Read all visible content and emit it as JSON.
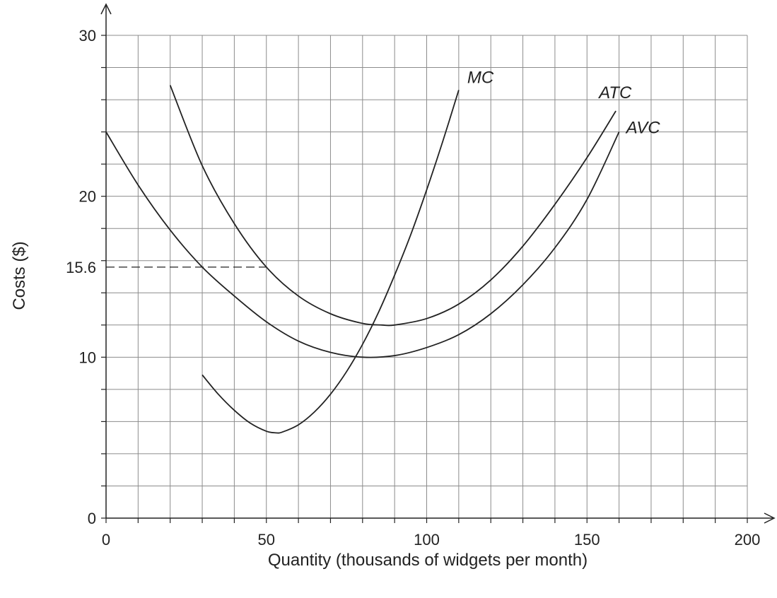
{
  "chart_data": {
    "type": "line",
    "title": "",
    "xlabel": "Quantity (thousands of widgets per month)",
    "ylabel": "Costs ($)",
    "xlim": [
      0,
      200
    ],
    "ylim": [
      0,
      30
    ],
    "x_ticks": [
      0,
      50,
      100,
      150,
      200
    ],
    "y_ticks": [
      0,
      10,
      20,
      30
    ],
    "y_extra_ticks": [
      15.6
    ],
    "x_tick_labels": [
      "0",
      "50",
      "100",
      "150",
      "200"
    ],
    "y_tick_labels": [
      "0",
      "10",
      "20",
      "30"
    ],
    "y_extra_tick_labels": [
      "15.6"
    ],
    "grid": true,
    "x_grid_step": 10,
    "y_grid_step": 2,
    "series": [
      {
        "name": "MC",
        "x": [
          30,
          35,
          40,
          45,
          50,
          53,
          55,
          60,
          65,
          70,
          75,
          80,
          85,
          90,
          95,
          100,
          105,
          110
        ],
        "y": [
          8.9,
          7.7,
          6.7,
          5.9,
          5.4,
          5.3,
          5.35,
          5.8,
          6.6,
          7.7,
          9.1,
          10.8,
          12.8,
          15.1,
          17.6,
          20.4,
          23.4,
          26.6
        ]
      },
      {
        "name": "ATC",
        "x": [
          20,
          30,
          40,
          50,
          60,
          70,
          80,
          86,
          90,
          100,
          110,
          120,
          130,
          140,
          150,
          159
        ],
        "y": [
          26.9,
          21.9,
          18.3,
          15.6,
          13.8,
          12.7,
          12.1,
          12.0,
          12.0,
          12.4,
          13.3,
          14.8,
          16.9,
          19.5,
          22.4,
          25.3
        ]
      },
      {
        "name": "AVC",
        "x": [
          0,
          10,
          20,
          30,
          40,
          50,
          60,
          70,
          80,
          90,
          100,
          110,
          120,
          130,
          140,
          150,
          160
        ],
        "y": [
          24.0,
          20.7,
          17.9,
          15.6,
          13.8,
          12.2,
          11.0,
          10.3,
          10.0,
          10.1,
          10.6,
          11.4,
          12.7,
          14.5,
          16.8,
          19.8,
          24.0
        ]
      }
    ],
    "annotations": [
      {
        "label": "MC",
        "series": "MC"
      },
      {
        "label": "ATC",
        "series": "ATC"
      },
      {
        "label": "AVC",
        "series": "AVC"
      }
    ],
    "reference_lines": [
      {
        "type": "horizontal",
        "y": 15.6,
        "x_from": 0,
        "x_to": 50,
        "style": "dashed"
      }
    ]
  }
}
